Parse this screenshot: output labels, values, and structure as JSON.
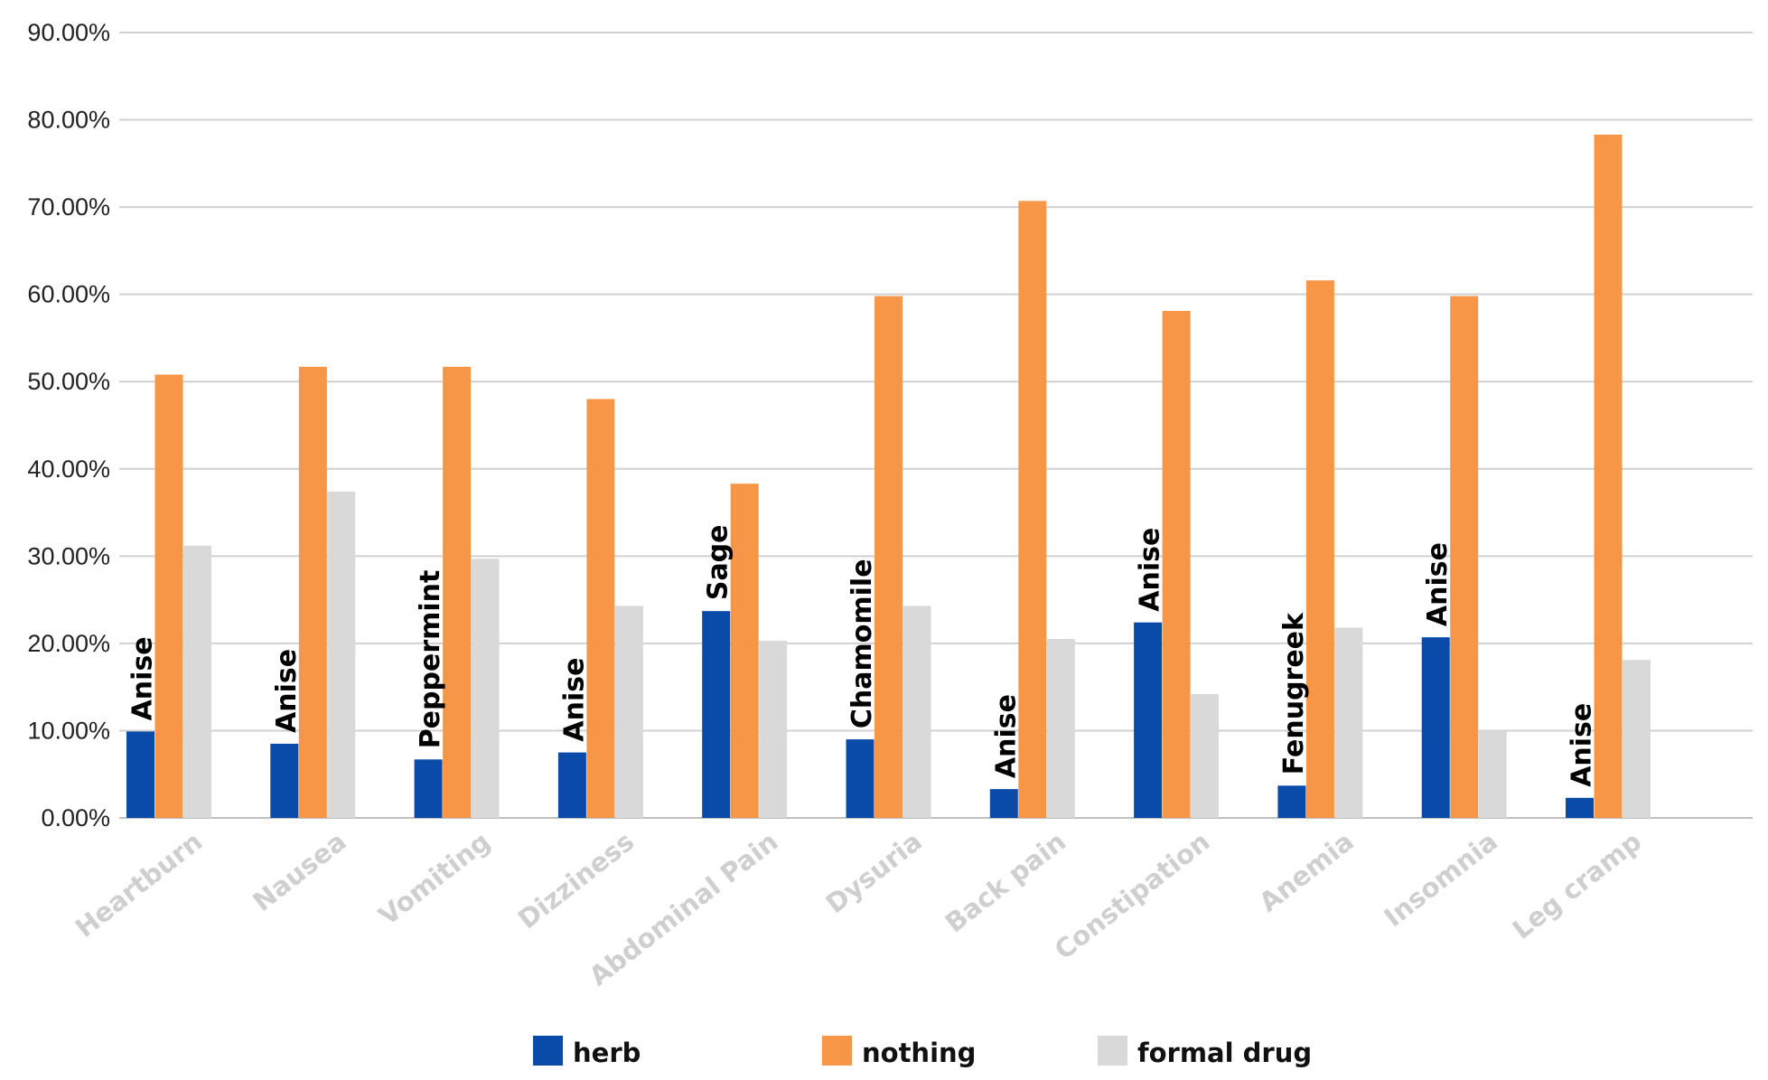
{
  "chart_data": {
    "type": "bar",
    "title": "",
    "xlabel": "",
    "ylabel": "",
    "ylim": [
      0,
      90
    ],
    "yticks": [
      "0.00%",
      "10.00%",
      "20.00%",
      "30.00%",
      "40.00%",
      "50.00%",
      "60.00%",
      "70.00%",
      "80.00%",
      "90.00%"
    ],
    "grid": true,
    "legend_position": "bottom",
    "categories": [
      "Heartburn",
      "Nausea",
      "Vomiting",
      "Dizziness",
      "Abdominal Pain",
      "Dysuria",
      "Back pain",
      "Constipation",
      "Anemia",
      "Insomnia",
      "Leg cramp"
    ],
    "series": [
      {
        "name": "herb",
        "color": "#0a4aa8",
        "values": [
          9.9,
          8.5,
          6.7,
          7.5,
          23.7,
          9.0,
          3.3,
          22.4,
          3.7,
          20.7,
          2.3
        ]
      },
      {
        "name": "nothing",
        "color": "#f79646",
        "values": [
          50.8,
          51.7,
          51.7,
          48.0,
          38.3,
          59.8,
          70.7,
          58.1,
          61.6,
          59.8,
          78.3
        ]
      },
      {
        "name": "formal drug",
        "color": "#d9d9d9",
        "values": [
          31.2,
          37.4,
          29.7,
          24.3,
          20.3,
          24.3,
          20.5,
          14.2,
          21.8,
          10.0,
          18.1
        ]
      }
    ],
    "annotations": [
      "Anise",
      "Anise",
      "Peppermint",
      "Anise",
      "Sage",
      "Chamomile",
      "Anise",
      "Anise",
      "Fenugreek",
      "Anise",
      "Anise"
    ]
  }
}
